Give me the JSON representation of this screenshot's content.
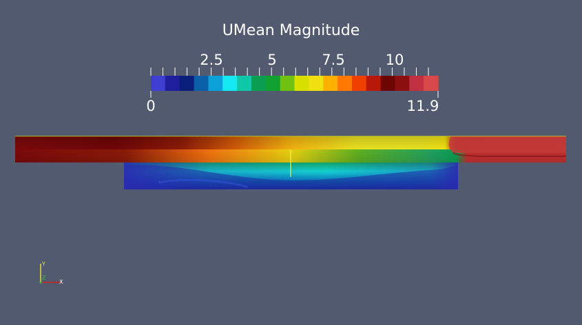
{
  "legend": {
    "title": "UMean Magnitude",
    "ticks": [
      {
        "value": 2.5,
        "label": "2.5"
      },
      {
        "value": 5,
        "label": "5"
      },
      {
        "value": 7.5,
        "label": "7.5"
      },
      {
        "value": 10,
        "label": "10"
      }
    ],
    "range_min": "0",
    "range_max": "11.9",
    "min_value": 0,
    "max_value": 11.9,
    "colormap": [
      "#3f3fd1",
      "#1f1f9e",
      "#0a1f7a",
      "#0a5fa8",
      "#0aa0d8",
      "#14e8f0",
      "#10c8a8",
      "#0a9e50",
      "#10a030",
      "#70c010",
      "#d8e000",
      "#f0e010",
      "#ffb000",
      "#ff7800",
      "#f04000",
      "#b81808",
      "#6e0505",
      "#8c1010",
      "#c03040",
      "#d84848"
    ]
  },
  "orientation_axes": {
    "x": "X",
    "y": "Y",
    "z": "Z"
  },
  "colors": {
    "background": "#525a6f",
    "text": "#ffffff",
    "x_axis": "#d02020",
    "y_axis": "#e8e030",
    "z_axis": "#40c040"
  }
}
